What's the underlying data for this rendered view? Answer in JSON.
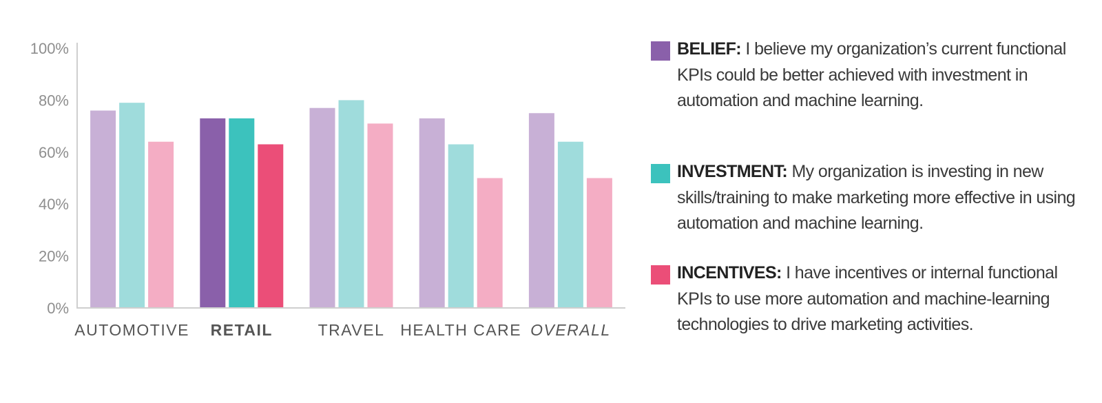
{
  "chart_data": {
    "type": "bar",
    "categories": [
      "AUTOMOTIVE",
      "RETAIL",
      "TRAVEL",
      "HEALTH CARE",
      "OVERALL"
    ],
    "highlight_category": "RETAIL",
    "italic_category": "OVERALL",
    "series": [
      {
        "name": "BELIEF",
        "values": [
          76,
          73,
          77,
          73,
          75
        ],
        "color": "#c8b0d6",
        "highlight_color": "#8a60aa"
      },
      {
        "name": "INVESTMENT",
        "values": [
          79,
          73,
          80,
          63,
          64
        ],
        "color": "#9fdcdc",
        "highlight_color": "#3cc2bd"
      },
      {
        "name": "INCENTIVES",
        "values": [
          64,
          63,
          71,
          50,
          50
        ],
        "color": "#f4adc4",
        "highlight_color": "#eb4e78"
      }
    ],
    "yticks": [
      "0%",
      "20%",
      "40%",
      "60%",
      "80%",
      "100%"
    ],
    "ylim": [
      0,
      100
    ],
    "grid": false
  },
  "legend": [
    {
      "term": "BELIEF:",
      "text": "I believe my organization’s current functional KPIs could be better achieved with investment in automation and machine learning.",
      "color": "#8a60aa"
    },
    {
      "term": "INVESTMENT:",
      "text": "My organization is investing in new skills/training to make marketing more effective in using automation and machine learning.",
      "color": "#3cc2bd"
    },
    {
      "term": "INCENTIVES:",
      "text": "I have incentives or internal functional KPIs to use more automation and machine-learning technologies to drive marketing activities.",
      "color": "#eb4e78"
    }
  ]
}
